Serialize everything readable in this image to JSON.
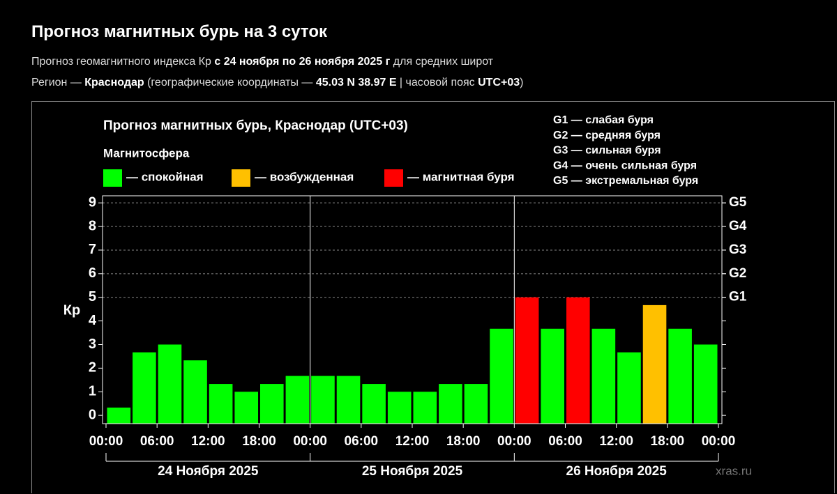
{
  "header": {
    "title": "Прогноз магнитных бурь на 3 суток",
    "subtitle_lines": [
      [
        {
          "text": "Прогноз геомагнитного индекса Кр ",
          "bold": false
        },
        {
          "text": "с 24 ноября по 26 ноября 2025 г",
          "bold": true
        },
        {
          "text": " для средних широт",
          "bold": false
        }
      ],
      [
        {
          "text": "Регион — ",
          "bold": false
        },
        {
          "text": "Краснодар",
          "bold": true
        },
        {
          "text": " (географические координаты — ",
          "bold": false
        },
        {
          "text": "45.03 N 38.97 E",
          "bold": true
        },
        {
          "text": " | часовой пояс ",
          "bold": false
        },
        {
          "text": "UTC+03",
          "bold": true
        },
        {
          "text": ")",
          "bold": false
        }
      ]
    ]
  },
  "chart_data": {
    "type": "bar",
    "title": "Прогноз магнитных бурь, Краснодар (UTC+03)",
    "legend_title": "Магнитосфера",
    "legend": [
      {
        "name": "— спокойная",
        "color": "#00ff00"
      },
      {
        "name": "— возбужденная",
        "color": "#ffc000"
      },
      {
        "name": "— магнитная буря",
        "color": "#ff0000"
      }
    ],
    "storm_scale": [
      "G1 — слабая буря",
      "G2 — средняя буря",
      "G3 — сильная буря",
      "G4 — очень сильная буря",
      "G5 — экстремальная буря"
    ],
    "y_label": "Кр",
    "values": [
      0.33,
      2.67,
      3,
      2.33,
      1.33,
      1,
      1.33,
      1.67,
      1.67,
      1.67,
      1.33,
      1,
      1,
      1.33,
      1.33,
      3.67,
      5,
      3.67,
      5,
      3.67,
      2.67,
      4.67,
      3.67,
      3
    ],
    "colors": [
      "#00ff00",
      "#00ff00",
      "#00ff00",
      "#00ff00",
      "#00ff00",
      "#00ff00",
      "#00ff00",
      "#00ff00",
      "#00ff00",
      "#00ff00",
      "#00ff00",
      "#00ff00",
      "#00ff00",
      "#00ff00",
      "#00ff00",
      "#00ff00",
      "#ff0000",
      "#00ff00",
      "#ff0000",
      "#00ff00",
      "#00ff00",
      "#ffc000",
      "#00ff00",
      "#00ff00"
    ],
    "xlim": [
      0,
      72
    ],
    "xticks": [
      {
        "value": 0,
        "label": "00:00"
      },
      {
        "value": 6,
        "label": "06:00"
      },
      {
        "value": 12,
        "label": "12:00"
      },
      {
        "value": 18,
        "label": "18:00"
      },
      {
        "value": 24,
        "label": "00:00"
      },
      {
        "value": 30,
        "label": "06:00"
      },
      {
        "value": 36,
        "label": "12:00"
      },
      {
        "value": 42,
        "label": "18:00"
      },
      {
        "value": 48,
        "label": "00:00"
      },
      {
        "value": 54,
        "label": "06:00"
      },
      {
        "value": 60,
        "label": "12:00"
      },
      {
        "value": 66,
        "label": "18:00"
      },
      {
        "value": 72,
        "label": "00:00"
      }
    ],
    "day_labels": [
      "24 Ноября 2025",
      "25 Ноября 2025",
      "26 Ноября 2025"
    ],
    "ylim": [
      -0.35,
      9.3
    ],
    "yticks": [
      0,
      1,
      2,
      3,
      4,
      5,
      6,
      7,
      8,
      9
    ],
    "y2lim": [
      -0.35,
      9.3
    ],
    "y2ticks": [
      {
        "value": 5,
        "label": "G1"
      },
      {
        "value": 6,
        "label": "G2"
      },
      {
        "value": 7,
        "label": "G3"
      },
      {
        "value": 8,
        "label": "G4"
      },
      {
        "value": 9,
        "label": "G5"
      }
    ],
    "grid": true,
    "watermark": "xras.ru"
  }
}
